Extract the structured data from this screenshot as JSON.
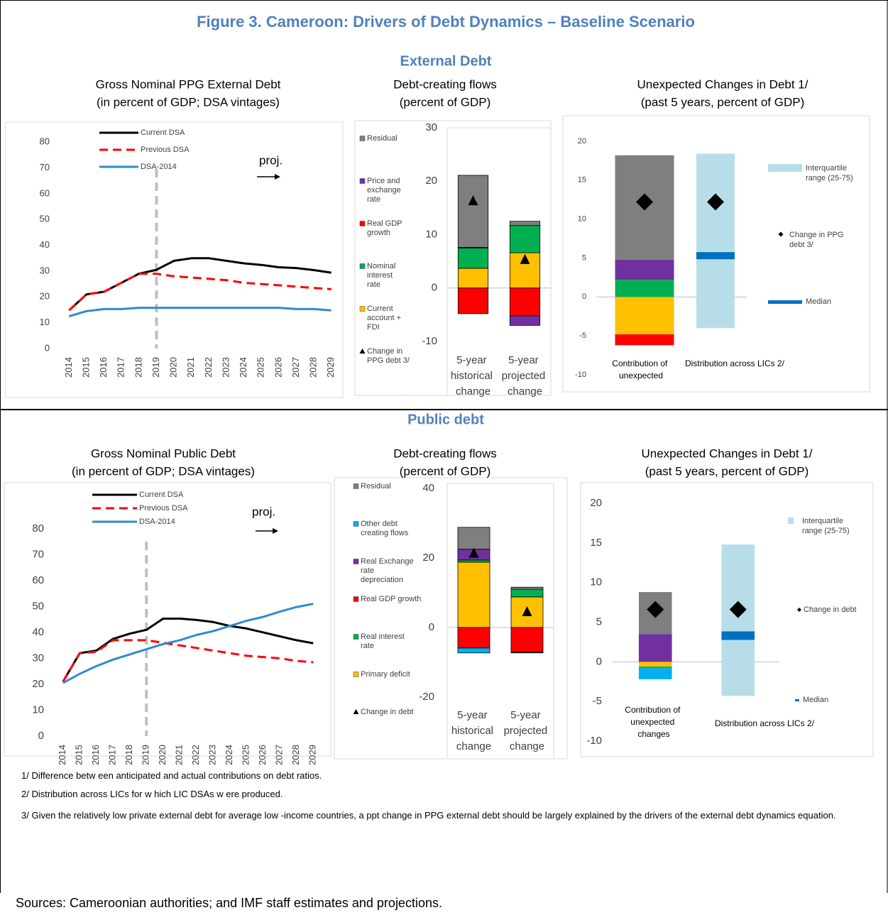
{
  "title": "Figure 3. Cameroon: Drivers of Debt Dynamics – Baseline Scenario",
  "sections": [
    "External Debt",
    "Public debt"
  ],
  "footnotes": [
    "1/ Difference betw een anticipated and actual contributions on debt ratios.",
    "2/ Distribution across LICs for w hich LIC DSAs w ere produced.",
    "3/ Given the relatively low  private external debt for average low -income countries, a ppt change in PPG external debt should be largely explained by the drivers of the external debt dynamics equation."
  ],
  "source": "Sources: Cameroonian authorities; and IMF staff estimates and projections.",
  "chart_data": [
    {
      "type": "line",
      "title": "Gross Nominal PPG External Debt",
      "subtitle": "(in percent of GDP; DSA vintages)",
      "categories": [
        "2014",
        "2015",
        "2016",
        "2017",
        "2018",
        "2019",
        "2020",
        "2021",
        "2022",
        "2023",
        "2024",
        "2025",
        "2026",
        "2027",
        "2028",
        "2029"
      ],
      "series": [
        {
          "name": "Current DSA",
          "color": "#000000",
          "style": "solid",
          "values": [
            14.8,
            21,
            22,
            25.5,
            29,
            30.5,
            34,
            35,
            35,
            34,
            33,
            32.4,
            31.5,
            31.2,
            30.4,
            29.4
          ]
        },
        {
          "name": "Previous DSA",
          "color": "#ff0000",
          "style": "dashed",
          "values": [
            14.8,
            21,
            22,
            25.5,
            29,
            29,
            28,
            27.5,
            27,
            26.5,
            25.5,
            25,
            24.5,
            24,
            23.5,
            23
          ]
        },
        {
          "name": "DSA-2014",
          "color": "#2e8bd0",
          "style": "solid",
          "values": [
            12.5,
            14.5,
            15.3,
            15.3,
            15.8,
            15.8,
            15.8,
            15.8,
            15.8,
            15.8,
            15.8,
            15.8,
            15.8,
            15.3,
            15.3,
            14.8
          ]
        }
      ],
      "ylim": [
        0,
        85
      ],
      "yticks": [
        0,
        10,
        20,
        30,
        40,
        50,
        60,
        70,
        80
      ],
      "projection_start": "2019",
      "annotation": "proj.",
      "legend": "upper left",
      "grid": false
    },
    {
      "type": "stacked_bar",
      "title": "Debt-creating flows",
      "subtitle": "(percent of GDP)",
      "categories": [
        "5-year historical change",
        "5-year projected change"
      ],
      "series": [
        {
          "name": "Current account + FDI",
          "color": "#ffc000",
          "values": [
            3.7,
            6.6
          ]
        },
        {
          "name": "Nominal interest rate",
          "color": "#00b050",
          "values": [
            3.8,
            5.1
          ]
        },
        {
          "name": "Real GDP growth",
          "color": "#ff0000",
          "values": [
            -4.8,
            -5.2
          ]
        },
        {
          "name": "Price and exchange rate",
          "color": "#7030a0",
          "values": [
            0.1,
            -1.8
          ]
        },
        {
          "name": "Residual",
          "color": "#7f7f7f",
          "values": [
            13.5,
            0.8
          ]
        }
      ],
      "markers": {
        "name": "Change in PPG debt 3/",
        "marker": "triangle",
        "color": "#000000",
        "values": [
          16.3,
          5.3
        ]
      },
      "ylim": [
        -10,
        30
      ],
      "yticks": [
        -10,
        0,
        10,
        20,
        30
      ],
      "legend": "left"
    },
    {
      "type": "range_bar",
      "title": "Unexpected Changes in Debt 1/",
      "subtitle": "(past 5 years, percent of GDP)",
      "categories": [
        "Contribution of unexpected",
        "Distribution across LICs 2/"
      ],
      "contributions": {
        "colors": [
          "#ffc000",
          "#ff0000",
          "#00b050",
          "#7030a0",
          "#7f7f7f"
        ],
        "values": [
          -4.8,
          -1.4,
          2.2,
          2.6,
          13.4
        ]
      },
      "interquartile": {
        "name": "Interquartile range (25-75)",
        "color": "#b7dee8",
        "values": [
          -4,
          18.4
        ]
      },
      "median": {
        "name": "Median",
        "color": "#0070c0",
        "value": 5.3
      },
      "change": {
        "name": "Change in PPG debt 3/",
        "marker": "diamond",
        "color": "#000000",
        "values": [
          12.2,
          12.2
        ]
      },
      "ylim": [
        -10,
        20
      ],
      "yticks": [
        -10,
        -5,
        0,
        5,
        10,
        15,
        20
      ],
      "legend": "right"
    },
    {
      "type": "line",
      "title": "Gross Nominal Public Debt",
      "subtitle": "(in percent of GDP; DSA vintages)",
      "categories": [
        "2014",
        "2015",
        "2016",
        "2017",
        "2018",
        "2019",
        "2020",
        "2021",
        "2022",
        "2023",
        "2024",
        "2025",
        "2026",
        "2027",
        "2028",
        "2029"
      ],
      "series": [
        {
          "name": "Current DSA",
          "color": "#000000",
          "style": "solid",
          "values": [
            21,
            32,
            33,
            37.5,
            39.5,
            41,
            45.3,
            45.3,
            44.8,
            44,
            42.5,
            41.5,
            40,
            38.5,
            37,
            35.8
          ]
        },
        {
          "name": "Previous DSA",
          "color": "#ff0000",
          "style": "dashed",
          "values": [
            21,
            32,
            32.5,
            37,
            37,
            37,
            36,
            35,
            34,
            33,
            32,
            31,
            30.5,
            30,
            29,
            28.5
          ]
        },
        {
          "name": "DSA-2014",
          "color": "#2e8bd0",
          "style": "solid",
          "values": [
            20.5,
            24,
            27,
            29.5,
            31.5,
            33.5,
            35.5,
            37,
            39,
            40.5,
            42.5,
            44.5,
            46,
            48,
            49.8,
            51
          ]
        }
      ],
      "ylim": [
        0,
        95
      ],
      "yticks": [
        0,
        10,
        20,
        30,
        40,
        50,
        60,
        70,
        80
      ],
      "projection_start": "2019",
      "annotation": "proj.",
      "legend": "upper left",
      "grid": false
    },
    {
      "type": "stacked_bar",
      "title": "Debt-creating flows",
      "subtitle": "(percent of GDP)",
      "categories": [
        "5-year historical change",
        "5-year projected change"
      ],
      "series": [
        {
          "name": "Primary deficit",
          "color": "#ffc000",
          "values": [
            18.8,
            8.8
          ]
        },
        {
          "name": "Real interest rate",
          "color": "#00b050",
          "values": [
            0.6,
            2.2
          ]
        },
        {
          "name": "Real GDP growth",
          "color": "#ff0000",
          "values": [
            -5.9,
            -7.1
          ]
        },
        {
          "name": "Real Exchange rate depreciation",
          "color": "#7030a0",
          "values": [
            3.1,
            0
          ]
        },
        {
          "name": "Other debt creating flows",
          "color": "#00b0f0",
          "values": [
            -1.4,
            -0.2
          ]
        },
        {
          "name": "Residual",
          "color": "#7f7f7f",
          "values": [
            6.3,
            0.6
          ]
        }
      ],
      "markers": {
        "name": "Change in debt",
        "marker": "triangle",
        "color": "#000000",
        "values": [
          21.3,
          4.5
        ]
      },
      "ylim": [
        -20,
        40
      ],
      "yticks": [
        -20,
        0,
        20,
        40
      ],
      "legend": "left"
    },
    {
      "type": "range_bar",
      "title": "Unexpected Changes in Debt 1/",
      "subtitle": "(past 5 years, percent of GDP)",
      "categories": [
        "Contribution of unexpected changes",
        "Distribution across LICs 2/"
      ],
      "contributions": {
        "colors": [
          "#ffc000",
          "#00b050",
          "#00b0f0",
          "#7030a0",
          "#7f7f7f"
        ],
        "values": [
          -0.6,
          -0.2,
          -1.4,
          3.5,
          5.3
        ]
      },
      "interquartile": {
        "name": "Interquartile range (25-75)",
        "color": "#b7dee8",
        "values": [
          -4.3,
          14.8
        ]
      },
      "median": {
        "name": "Median",
        "color": "#0070c0",
        "value": 3.3
      },
      "change": {
        "name": "Change in debt",
        "marker": "diamond",
        "color": "#000000",
        "values": [
          6.6,
          6.6
        ]
      },
      "ylim": [
        -10,
        20
      ],
      "yticks": [
        -10,
        -5,
        0,
        5,
        10,
        15,
        20
      ],
      "legend": "right"
    }
  ]
}
